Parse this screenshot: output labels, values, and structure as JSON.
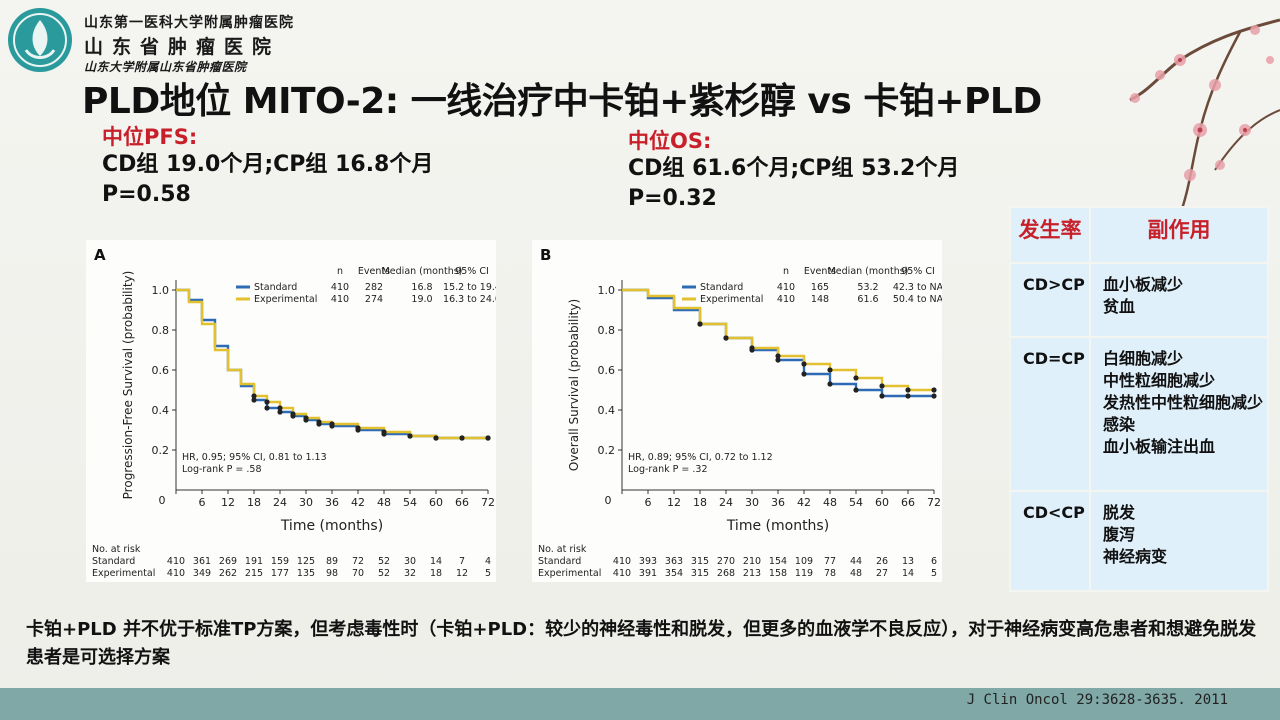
{
  "header": {
    "hospital_line1": "山东第一医科大学附属肿瘤医院",
    "hospital_line2": "山东省肿瘤医院",
    "hospital_line3": "山东大学附属山东省肿瘤医院"
  },
  "title": "PLD地位 MITO-2: 一线治疗中卡铂+紫杉醇 vs 卡铂+PLD",
  "pfs": {
    "heading": "中位PFS:",
    "line1": "CD组 19.0个月;CP组 16.8个月",
    "line2": "P=0.58"
  },
  "os": {
    "heading": "中位OS:",
    "line1": "CD组 61.6个月;CP组 53.2个月",
    "line2": "P=0.32"
  },
  "chart_data": [
    {
      "type": "line",
      "panel_label": "A",
      "xlabel": "Time (months)",
      "ylabel": "Progression-Free Survival (probability)",
      "x_ticks": [
        0,
        6,
        12,
        18,
        24,
        30,
        36,
        42,
        48,
        54,
        60,
        66,
        72
      ],
      "y_ticks": [
        0.2,
        0.4,
        0.6,
        0.8,
        1.0
      ],
      "xlim": [
        0,
        72
      ],
      "ylim": [
        0,
        1.05
      ],
      "legend_placement": "top-right",
      "legend_header": {
        "n": "n",
        "events": "Events",
        "median": "Median (months)",
        "ci": "95% CI"
      },
      "series": [
        {
          "name": "Standard",
          "color": "#2d6cb5",
          "n": "410",
          "events": "282",
          "median": "16.8",
          "ci": "15.2 to 19.4",
          "x": [
            0,
            3,
            6,
            9,
            12,
            15,
            18,
            21,
            24,
            27,
            30,
            33,
            36,
            42,
            48,
            54,
            60,
            66,
            72
          ],
          "y": [
            1.0,
            0.95,
            0.85,
            0.72,
            0.6,
            0.52,
            0.45,
            0.41,
            0.39,
            0.37,
            0.35,
            0.33,
            0.32,
            0.3,
            0.28,
            0.27,
            0.26,
            0.26,
            0.26
          ]
        },
        {
          "name": "Experimental",
          "color": "#e3c02e",
          "n": "410",
          "events": "274",
          "median": "19.0",
          "ci": "16.3 to 24.0",
          "x": [
            0,
            3,
            6,
            9,
            12,
            15,
            18,
            21,
            24,
            27,
            30,
            33,
            36,
            42,
            48,
            54,
            60,
            66,
            72
          ],
          "y": [
            1.0,
            0.94,
            0.83,
            0.7,
            0.6,
            0.53,
            0.47,
            0.44,
            0.41,
            0.38,
            0.36,
            0.34,
            0.33,
            0.31,
            0.29,
            0.27,
            0.26,
            0.26,
            0.26
          ]
        }
      ],
      "annotation1": "HR, 0.95; 95% CI, 0.81 to 1.13",
      "annotation2": "Log-rank P = .58",
      "risk": {
        "title": "No. at risk",
        "rows": [
          {
            "label": "Standard",
            "values": [
              "410",
              "361",
              "269",
              "191",
              "159",
              "125",
              "89",
              "72",
              "52",
              "30",
              "14",
              "7",
              "4"
            ]
          },
          {
            "label": "Experimental",
            "values": [
              "410",
              "349",
              "262",
              "215",
              "177",
              "135",
              "98",
              "70",
              "52",
              "32",
              "18",
              "12",
              "5"
            ]
          }
        ]
      }
    },
    {
      "type": "line",
      "panel_label": "B",
      "xlabel": "Time (months)",
      "ylabel": "Overall Survival (probability)",
      "x_ticks": [
        0,
        6,
        12,
        18,
        24,
        30,
        36,
        42,
        48,
        54,
        60,
        66,
        72
      ],
      "y_ticks": [
        0.2,
        0.4,
        0.6,
        0.8,
        1.0
      ],
      "xlim": [
        0,
        72
      ],
      "ylim": [
        0,
        1.05
      ],
      "legend_placement": "top-right",
      "legend_header": {
        "n": "n",
        "events": "Events",
        "median": "Median (months)",
        "ci": "95% CI"
      },
      "series": [
        {
          "name": "Standard",
          "color": "#2d6cb5",
          "n": "410",
          "events": "165",
          "median": "53.2",
          "ci": "42.3 to NA",
          "x": [
            0,
            6,
            12,
            18,
            24,
            30,
            36,
            42,
            48,
            54,
            60,
            66,
            72
          ],
          "y": [
            1.0,
            0.96,
            0.9,
            0.83,
            0.76,
            0.7,
            0.65,
            0.58,
            0.53,
            0.5,
            0.47,
            0.47,
            0.47
          ]
        },
        {
          "name": "Experimental",
          "color": "#e3c02e",
          "n": "410",
          "events": "148",
          "median": "61.6",
          "ci": "50.4 to NA",
          "x": [
            0,
            6,
            12,
            18,
            24,
            30,
            36,
            42,
            48,
            54,
            60,
            66,
            72
          ],
          "y": [
            1.0,
            0.97,
            0.91,
            0.83,
            0.76,
            0.71,
            0.67,
            0.63,
            0.6,
            0.56,
            0.52,
            0.5,
            0.5
          ]
        }
      ],
      "annotation1": "HR, 0.89; 95% CI, 0.72 to 1.12",
      "annotation2": "Log-rank P = .32",
      "risk": {
        "title": "No. at risk",
        "rows": [
          {
            "label": "Standard",
            "values": [
              "410",
              "393",
              "363",
              "315",
              "270",
              "210",
              "154",
              "109",
              "77",
              "44",
              "26",
              "13",
              "6"
            ]
          },
          {
            "label": "Experimental",
            "values": [
              "410",
              "391",
              "354",
              "315",
              "268",
              "213",
              "158",
              "119",
              "78",
              "48",
              "27",
              "14",
              "5"
            ]
          }
        ]
      }
    }
  ],
  "ae_table": {
    "header_rate": "发生率",
    "header_effect": "副作用",
    "rows": [
      {
        "rate": "CD>CP",
        "items": [
          "血小板减少",
          "贫血"
        ]
      },
      {
        "rate": "CD=CP",
        "items": [
          "白细胞减少",
          "中性粒细胞减少",
          "发热性中性粒细胞减少",
          "感染",
          "血小板输注出血"
        ]
      },
      {
        "rate": "CD<CP",
        "items": [
          "脱发",
          "腹泻",
          "神经病变"
        ]
      }
    ]
  },
  "conclusion": "卡铂+PLD 并不优于标准TP方案，但考虑毒性时（卡铂+PLD：较少的神经毒性和脱发，但更多的血液学不良反应），对于神经病变高危患者和想避免脱发患者是可选择方案",
  "citation": "J Clin Oncol 29:3628-3635. 2011"
}
